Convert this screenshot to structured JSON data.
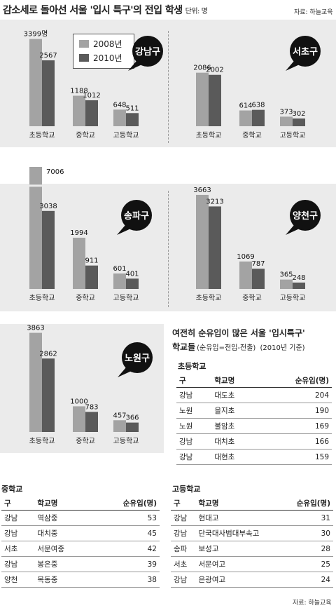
{
  "header": {
    "title": "감소세로 돌아선 서울 '입시 특구'의 전입 학생",
    "unit": "단위: 명",
    "source_top": "자료: 하늘교육",
    "source_bottom": "자료: 하늘교육"
  },
  "colors": {
    "y2008": "#a3a3a3",
    "y2010": "#5a5a5a",
    "bubble": "#111111",
    "panel": "#ebebeb"
  },
  "chart_data": [
    {
      "type": "bar",
      "district": "강남구",
      "categories": [
        "초등학교",
        "중학교",
        "고등학교"
      ],
      "series": [
        {
          "name": "2008년",
          "values": [
            3399,
            1188,
            648
          ]
        },
        {
          "name": "2010년",
          "values": [
            2567,
            1012,
            511
          ]
        }
      ],
      "value_suffix_first": "명"
    },
    {
      "type": "bar",
      "district": "서초구",
      "categories": [
        "초등학교",
        "중학교",
        "고등학교"
      ],
      "series": [
        {
          "name": "2008년",
          "values": [
            2086,
            614,
            373
          ]
        },
        {
          "name": "2010년",
          "values": [
            2002,
            638,
            302
          ]
        }
      ]
    },
    {
      "type": "bar",
      "district": "송파구",
      "categories": [
        "초등학교",
        "중학교",
        "고등학교"
      ],
      "series": [
        {
          "name": "2008년",
          "values": [
            7006,
            1994,
            601
          ]
        },
        {
          "name": "2010년",
          "values": [
            3038,
            911,
            401
          ]
        }
      ],
      "axis_break": true
    },
    {
      "type": "bar",
      "district": "양천구",
      "categories": [
        "초등학교",
        "중학교",
        "고등학교"
      ],
      "series": [
        {
          "name": "2008년",
          "values": [
            3663,
            1069,
            365
          ]
        },
        {
          "name": "2010년",
          "values": [
            3213,
            787,
            248
          ]
        }
      ]
    },
    {
      "type": "bar",
      "district": "노원구",
      "categories": [
        "초등학교",
        "중학교",
        "고등학교"
      ],
      "series": [
        {
          "name": "2008년",
          "values": [
            3863,
            1000,
            457
          ]
        },
        {
          "name": "2010년",
          "values": [
            2862,
            783,
            366
          ]
        }
      ]
    }
  ],
  "legend": {
    "y2008": "2008년",
    "y2010": "2010년"
  },
  "tables": {
    "title": "여전히 순유입이 많은 서울 '입시특구'",
    "title2": "학교들",
    "subtitle": "(순유입=전입-전출)",
    "basis": "(2010년 기준)",
    "headers": {
      "gu": "구",
      "school": "학교명",
      "net": "순유입(명)"
    },
    "elementary": {
      "label": "초등학교",
      "rows": [
        {
          "gu": "강남",
          "school": "대도초",
          "net": "204"
        },
        {
          "gu": "노원",
          "school": "을지초",
          "net": "190"
        },
        {
          "gu": "노원",
          "school": "불암초",
          "net": "169"
        },
        {
          "gu": "강남",
          "school": "대치초",
          "net": "166"
        },
        {
          "gu": "강남",
          "school": "대현초",
          "net": "159"
        }
      ]
    },
    "middle": {
      "label": "중학교",
      "rows": [
        {
          "gu": "강남",
          "school": "역삼중",
          "net": "53"
        },
        {
          "gu": "강남",
          "school": "대치중",
          "net": "45"
        },
        {
          "gu": "서초",
          "school": "서문여중",
          "net": "42"
        },
        {
          "gu": "강남",
          "school": "봉은중",
          "net": "39"
        },
        {
          "gu": "양천",
          "school": "목동중",
          "net": "38"
        }
      ]
    },
    "high": {
      "label": "고등학교",
      "rows": [
        {
          "gu": "강남",
          "school": "현대고",
          "net": "31"
        },
        {
          "gu": "강남",
          "school": "단국대사범대부속고",
          "net": "30"
        },
        {
          "gu": "송파",
          "school": "보성고",
          "net": "28"
        },
        {
          "gu": "서초",
          "school": "서문여고",
          "net": "25"
        },
        {
          "gu": "강남",
          "school": "은광여고",
          "net": "24"
        }
      ]
    }
  }
}
